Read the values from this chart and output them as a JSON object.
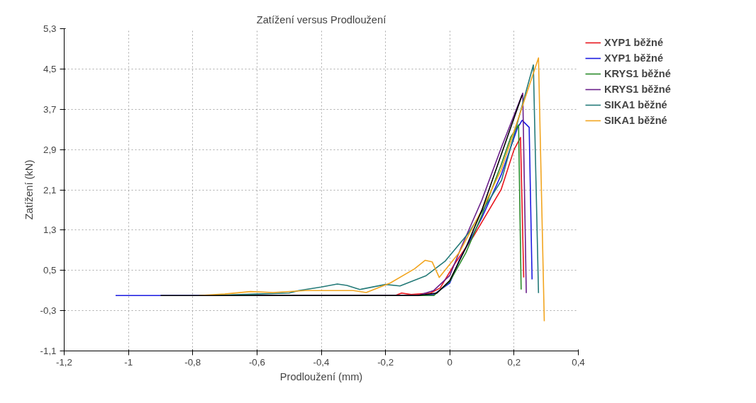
{
  "chart_data": {
    "type": "line",
    "title": "Zatížení versus Prodloužení",
    "xlabel": "Prodloužení (mm)",
    "ylabel": "Zatížení (kN)",
    "xlim": [
      -1.2,
      0.4
    ],
    "ylim": [
      -1.1,
      5.3
    ],
    "xticks": [
      {
        "value": -1.2,
        "label": "-1,2"
      },
      {
        "value": -1,
        "label": "-1"
      },
      {
        "value": -0.8,
        "label": "-0,8"
      },
      {
        "value": -0.6,
        "label": "-0,6"
      },
      {
        "value": -0.4,
        "label": "-0,4"
      },
      {
        "value": -0.2,
        "label": "-0,2"
      },
      {
        "value": 0,
        "label": "0"
      },
      {
        "value": 0.2,
        "label": "0,2"
      },
      {
        "value": 0.4,
        "label": "0,4"
      }
    ],
    "yticks": [
      {
        "value": -1.1,
        "label": "-1,1"
      },
      {
        "value": -0.3,
        "label": "-0,3"
      },
      {
        "value": 0.5,
        "label": "0,5"
      },
      {
        "value": 1.3,
        "label": "1,3"
      },
      {
        "value": 2.1,
        "label": "2,1"
      },
      {
        "value": 2.9,
        "label": "2,9"
      },
      {
        "value": 3.7,
        "label": "3,7"
      },
      {
        "value": 4.5,
        "label": "4,5"
      },
      {
        "value": 5.3,
        "label": "5,3"
      }
    ],
    "grid": true,
    "legend": "right",
    "series": [
      {
        "name": "XYP1 běžné",
        "color": "#e8141b",
        "x": [
          -0.75,
          -0.17,
          -0.15,
          -0.12,
          -0.06,
          -0.03,
          0.013,
          0.073,
          0.16,
          0.2,
          0.22,
          0.23
        ],
        "values": [
          0,
          0,
          0.05,
          0.02,
          0.05,
          0.15,
          0.61,
          1.17,
          2.11,
          2.9,
          3.14,
          0.36
        ]
      },
      {
        "name": "XYP1 běžné",
        "color": "#1a1ae0",
        "x": [
          -1.04,
          -0.1,
          -0.05,
          0,
          0.03,
          0.1,
          0.16,
          0.21,
          0.225,
          0.247,
          0.256
        ],
        "values": [
          0,
          0,
          0.02,
          0.25,
          0.71,
          1.55,
          2.4,
          3.32,
          3.48,
          3.34,
          0.32
        ]
      },
      {
        "name": "KRYS1 běžné",
        "color": "#2a8a2a",
        "x": [
          -0.75,
          -0.05,
          0,
          0.05,
          0.1,
          0.16,
          0.19,
          0.214,
          0.222
        ],
        "values": [
          0,
          0,
          0.28,
          0.85,
          1.6,
          2.6,
          3.15,
          3.39,
          0.12
        ]
      },
      {
        "name": "KRYS1 běžné",
        "color": "#6a1f8a",
        "x": [
          -0.6,
          -0.1,
          -0.05,
          0,
          0.035,
          0.1,
          0.161,
          0.227,
          0.238
        ],
        "values": [
          0,
          0,
          0.1,
          0.4,
          0.95,
          1.9,
          2.95,
          4.02,
          0.05
        ]
      },
      {
        "name": "SIKA1 běžné",
        "color": "#247a78",
        "x": [
          -0.75,
          -0.6,
          -0.5,
          -0.47,
          -0.4,
          -0.35,
          -0.32,
          -0.28,
          -0.2,
          -0.155,
          -0.075,
          -0.015,
          0.057,
          0.161,
          0.26,
          0.276
        ],
        "values": [
          0,
          0.03,
          0.05,
          0.1,
          0.17,
          0.23,
          0.2,
          0.12,
          0.22,
          0.19,
          0.39,
          0.68,
          1.23,
          2.29,
          4.58,
          0.05
        ]
      },
      {
        "name": "SIKA1 běžné",
        "color": "#f2a51f",
        "x": [
          -0.78,
          -0.7,
          -0.62,
          -0.55,
          -0.45,
          -0.3,
          -0.26,
          -0.185,
          -0.11,
          -0.077,
          -0.055,
          -0.033,
          0.029,
          0.1,
          0.16,
          0.276,
          0.294
        ],
        "values": [
          0,
          0.03,
          0.08,
          0.06,
          0.1,
          0.1,
          0.06,
          0.25,
          0.53,
          0.7,
          0.67,
          0.36,
          0.85,
          1.7,
          2.5,
          4.72,
          -0.51
        ]
      },
      {
        "color": "#000000",
        "x": [
          -0.9,
          -0.1,
          -0.04,
          0,
          0.05,
          0.1,
          0.16,
          0.225
        ],
        "values": [
          0,
          0,
          0.05,
          0.3,
          0.95,
          1.7,
          2.8,
          3.98
        ]
      }
    ]
  }
}
